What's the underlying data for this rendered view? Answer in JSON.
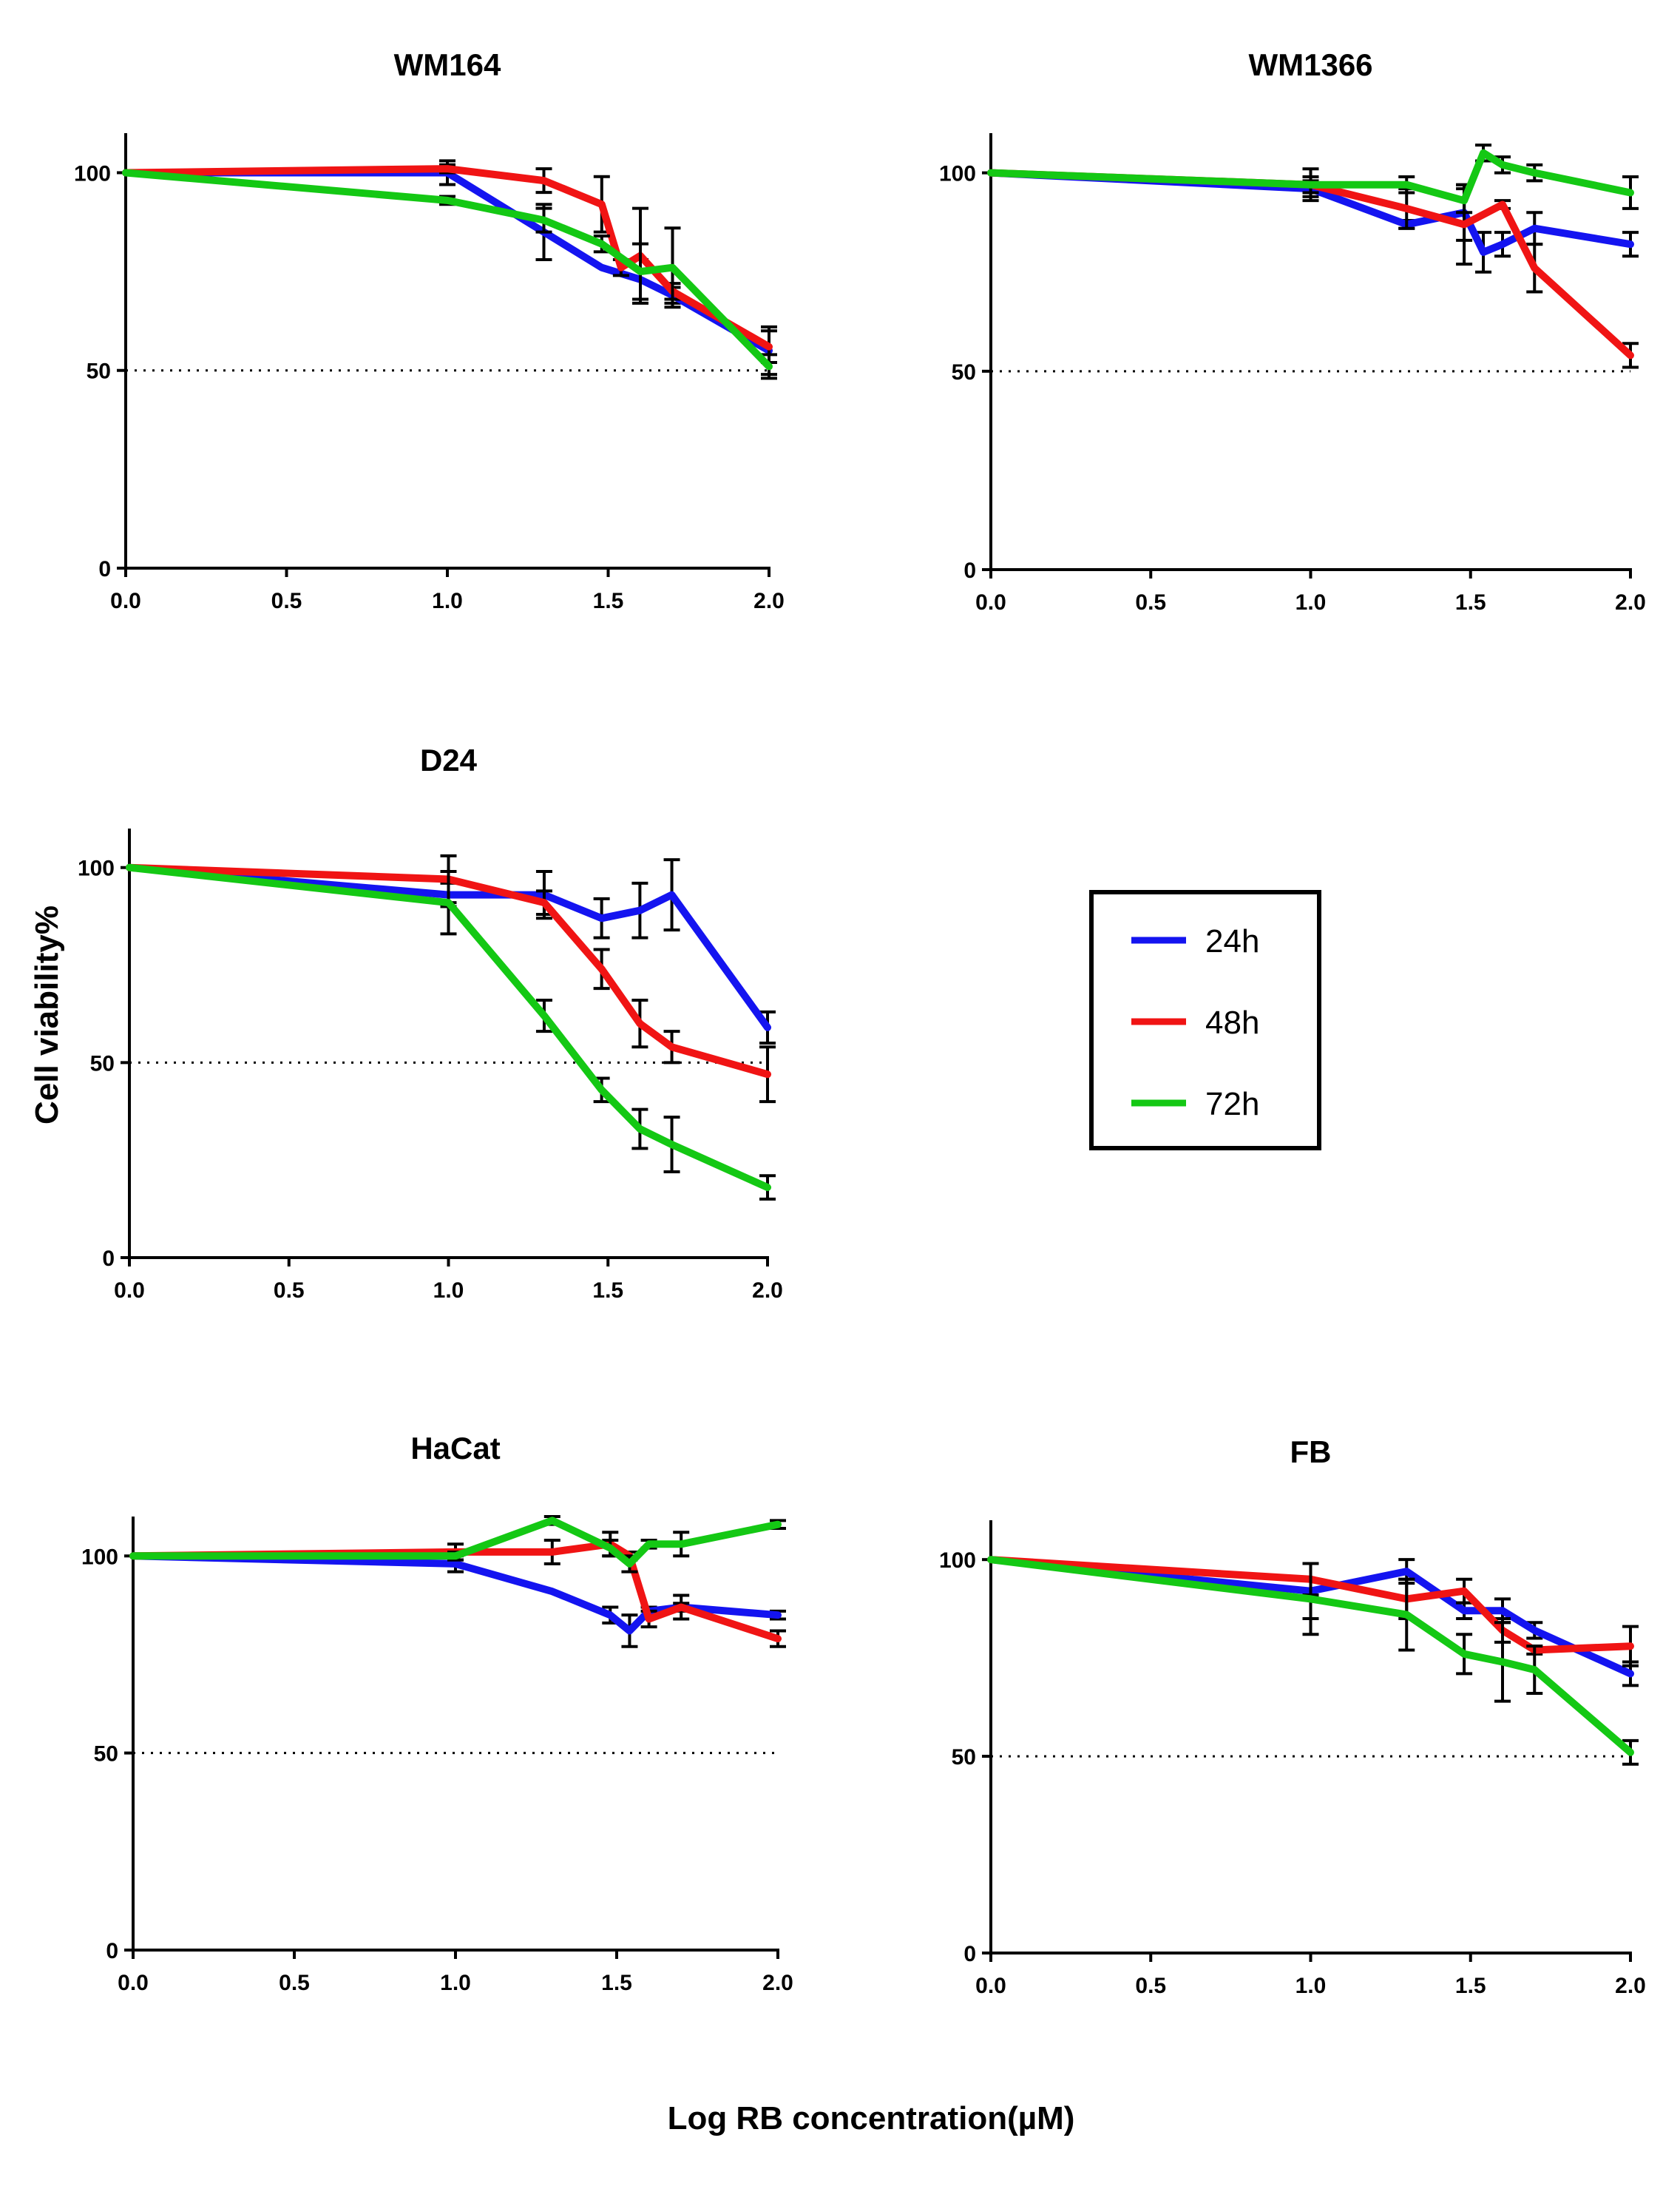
{
  "figure": {
    "ylabel": "Cell viability%",
    "xlabel": "Log RB concentration(µM)"
  },
  "legend": [
    {
      "label": "24h",
      "color": "#1414f0"
    },
    {
      "label": "48h",
      "color": "#f01414"
    },
    {
      "label": "72h",
      "color": "#14c814"
    }
  ],
  "chart_data": [
    {
      "type": "line",
      "title": "WM164",
      "xlim": [
        0,
        2
      ],
      "ylim": [
        0,
        110
      ],
      "xticks": [
        "0.0",
        "0.5",
        "1.0",
        "1.5",
        "2.0"
      ],
      "yticks": [
        "0",
        "50",
        "100"
      ],
      "reference_line": 50,
      "series": [
        {
          "name": "24h",
          "x": [
            0,
            1.0,
            1.3,
            1.48,
            1.6,
            1.7,
            2.0
          ],
          "y": [
            100,
            100,
            85,
            76,
            73,
            69,
            55
          ],
          "err": [
            0,
            3,
            7,
            0,
            5,
            2,
            6
          ]
        },
        {
          "name": "48h",
          "x": [
            0,
            1.0,
            1.3,
            1.48,
            1.54,
            1.6,
            1.7,
            2.0
          ],
          "y": [
            100,
            101,
            98,
            92,
            76,
            79,
            70,
            56
          ],
          "err": [
            0,
            1,
            3,
            7,
            2,
            12,
            2,
            4
          ]
        },
        {
          "name": "72h",
          "x": [
            0,
            1.0,
            1.3,
            1.48,
            1.6,
            1.7,
            2.0
          ],
          "y": [
            100,
            93,
            88,
            82,
            75,
            76,
            51
          ],
          "err": [
            0,
            1,
            3,
            2,
            7,
            10,
            3
          ]
        }
      ]
    },
    {
      "type": "line",
      "title": "WM1366",
      "xlim": [
        0,
        2
      ],
      "ylim": [
        0,
        110
      ],
      "xticks": [
        "0.0",
        "0.5",
        "1.0",
        "1.5",
        "2.0"
      ],
      "yticks": [
        "0",
        "50",
        "100"
      ],
      "reference_line": 50,
      "series": [
        {
          "name": "24h",
          "x": [
            0,
            1.0,
            1.3,
            1.48,
            1.54,
            1.6,
            1.7,
            2.0
          ],
          "y": [
            100,
            96,
            87,
            90,
            80,
            82,
            86,
            82
          ],
          "err": [
            0,
            2,
            1,
            7,
            5,
            3,
            4,
            3
          ]
        },
        {
          "name": "48h",
          "x": [
            0,
            1.0,
            1.3,
            1.48,
            1.6,
            1.7,
            2.0
          ],
          "y": [
            100,
            97,
            91,
            87,
            92,
            76,
            54
          ],
          "err": [
            0,
            4,
            5,
            10,
            1,
            6,
            3
          ]
        },
        {
          "name": "72h",
          "x": [
            0,
            1.0,
            1.3,
            1.48,
            1.54,
            1.6,
            1.7,
            2.0
          ],
          "y": [
            100,
            97,
            97,
            93,
            105,
            102,
            100,
            95
          ],
          "err": [
            0,
            2,
            2,
            3,
            2,
            2,
            2,
            4
          ]
        }
      ]
    },
    {
      "type": "line",
      "title": "D24",
      "xlim": [
        0,
        2
      ],
      "ylim": [
        0,
        110
      ],
      "xticks": [
        "0.0",
        "0.5",
        "1.0",
        "1.5",
        "2.0"
      ],
      "yticks": [
        "0",
        "50",
        "100"
      ],
      "reference_line": 50,
      "series": [
        {
          "name": "24h",
          "x": [
            0,
            1.0,
            1.3,
            1.48,
            1.6,
            1.7,
            2.0
          ],
          "y": [
            100,
            93,
            93,
            87,
            89,
            93,
            59
          ],
          "err": [
            0,
            3,
            6,
            5,
            7,
            9,
            4
          ]
        },
        {
          "name": "48h",
          "x": [
            0,
            1.0,
            1.3,
            1.48,
            1.6,
            1.7,
            2.0
          ],
          "y": [
            100,
            97,
            91,
            74,
            60,
            54,
            47
          ],
          "err": [
            0,
            6,
            3,
            5,
            6,
            4,
            7
          ]
        },
        {
          "name": "72h",
          "x": [
            0,
            1.0,
            1.3,
            1.48,
            1.6,
            1.7,
            2.0
          ],
          "y": [
            100,
            91,
            62,
            43,
            33,
            29,
            18
          ],
          "err": [
            0,
            8,
            4,
            3,
            5,
            7,
            3
          ]
        }
      ]
    },
    {
      "type": "line",
      "title": "HaCat",
      "xlim": [
        0,
        2
      ],
      "ylim": [
        0,
        110
      ],
      "xticks": [
        "0.0",
        "0.5",
        "1.0",
        "1.5",
        "2.0"
      ],
      "yticks": [
        "0",
        "50",
        "100"
      ],
      "reference_line": 50,
      "series": [
        {
          "name": "24h",
          "x": [
            0,
            1.0,
            1.3,
            1.48,
            1.54,
            1.6,
            1.7,
            2.0
          ],
          "y": [
            100,
            98,
            91,
            85,
            81,
            86,
            87,
            85
          ],
          "err": [
            0,
            2,
            0,
            2,
            4,
            1,
            3,
            1
          ]
        },
        {
          "name": "48h",
          "x": [
            0,
            1.0,
            1.3,
            1.48,
            1.54,
            1.6,
            1.7,
            2.0
          ],
          "y": [
            100,
            101,
            101,
            103,
            100,
            84,
            87,
            79
          ],
          "err": [
            0,
            2,
            3,
            3,
            1,
            2,
            1,
            2
          ]
        },
        {
          "name": "72h",
          "x": [
            0,
            1.0,
            1.3,
            1.48,
            1.54,
            1.6,
            1.7,
            2.0
          ],
          "y": [
            100,
            100,
            109,
            102,
            98,
            103,
            103,
            108
          ],
          "err": [
            0,
            1,
            1,
            2,
            2,
            1,
            3,
            1
          ]
        }
      ]
    },
    {
      "type": "line",
      "title": "FB",
      "xlim": [
        0,
        2
      ],
      "ylim": [
        0,
        110
      ],
      "xticks": [
        "0.0",
        "0.5",
        "1.0",
        "1.5",
        "2.0"
      ],
      "yticks": [
        "0",
        "50",
        "100"
      ],
      "reference_line": 50,
      "series": [
        {
          "name": "24h",
          "x": [
            0,
            1.0,
            1.3,
            1.48,
            1.6,
            1.7,
            2.0
          ],
          "y": [
            100,
            92,
            97,
            87,
            87,
            82,
            71
          ],
          "err": [
            0,
            7,
            3,
            2,
            3,
            2,
            3
          ]
        },
        {
          "name": "48h",
          "x": [
            0,
            1.0,
            1.3,
            1.48,
            1.6,
            1.7,
            2.0
          ],
          "y": [
            100,
            95,
            90,
            92,
            82,
            77,
            78
          ],
          "err": [
            0,
            4,
            5,
            3,
            3,
            1,
            5
          ]
        },
        {
          "name": "72h",
          "x": [
            0,
            1.0,
            1.3,
            1.48,
            1.6,
            1.7,
            2.0
          ],
          "y": [
            100,
            90,
            86,
            76,
            74,
            72,
            51
          ],
          "err": [
            0,
            9,
            9,
            5,
            10,
            6,
            3
          ]
        }
      ]
    }
  ]
}
